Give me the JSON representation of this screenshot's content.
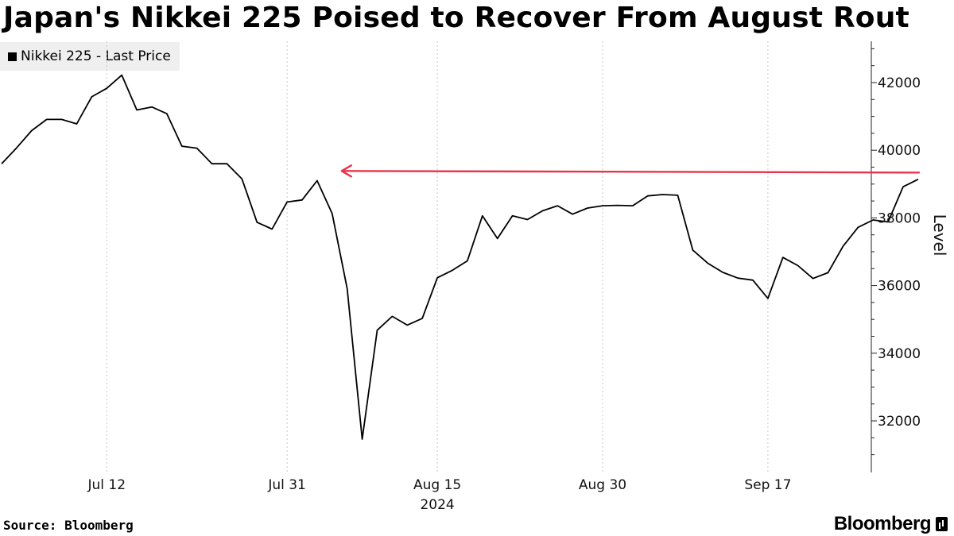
{
  "page": {
    "title": "Japan's Nikkei 225 Poised to Recover From August Rout",
    "source": "Source: Bloomberg",
    "brand": "Bloomberg"
  },
  "chart_data": {
    "type": "line",
    "title": "Japan's Nikkei 225 Poised to Recover From August Rout",
    "xlabel": "2024",
    "ylabel": "Level",
    "ylim": [
      30700,
      43200
    ],
    "yticks": [
      32000,
      34000,
      36000,
      38000,
      40000,
      42000
    ],
    "xticks": [
      {
        "label": "Jul 12",
        "index": 7
      },
      {
        "label": "Jul 31",
        "index": 19
      },
      {
        "label": "Aug 15",
        "index": 29
      },
      {
        "label": "Aug 30",
        "index": 40
      },
      {
        "label": "Sep 17",
        "index": 51
      }
    ],
    "x_year_label": "2024",
    "grid": true,
    "legend": {
      "position": "top-left",
      "entries": [
        "Nikkei 225 - Last Price"
      ]
    },
    "series": [
      {
        "name": "Nikkei 225 - Last Price",
        "color": "#000000",
        "values": [
          39600,
          40070,
          40580,
          40910,
          40910,
          40780,
          41580,
          41830,
          42220,
          41190,
          41280,
          41080,
          40120,
          40060,
          39600,
          39600,
          39150,
          37870,
          37670,
          38470,
          38530,
          39100,
          38130,
          35910,
          31460,
          34680,
          35090,
          34830,
          35030,
          36230,
          36450,
          36730,
          38060,
          37390,
          38060,
          37950,
          38210,
          38360,
          38110,
          38290,
          38360,
          38370,
          38360,
          38650,
          38690,
          38670,
          37050,
          36660,
          36390,
          36220,
          36160,
          35620,
          36830,
          36590,
          36210,
          36380,
          37160,
          37720,
          37940,
          37880,
          38920,
          39140
        ]
      }
    ],
    "annotation": {
      "type": "arrow",
      "color": "#e8344e",
      "level": 39340,
      "from_index": 61,
      "to_index": 22
    }
  }
}
